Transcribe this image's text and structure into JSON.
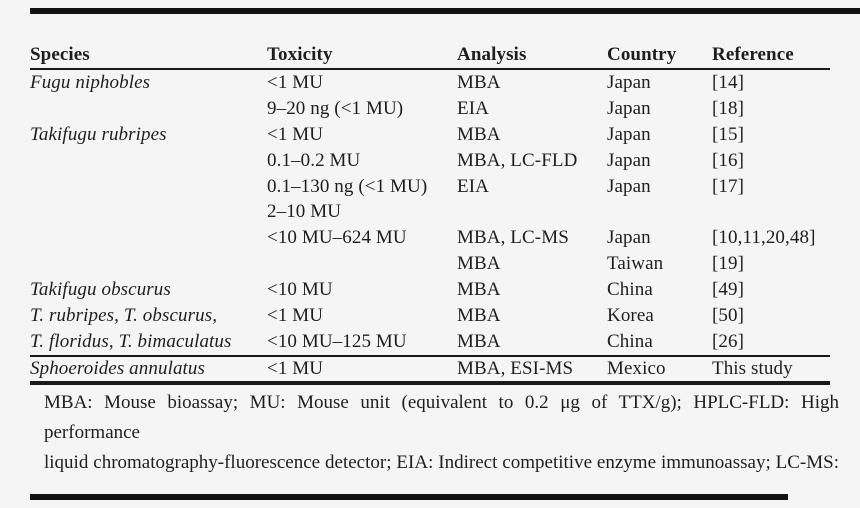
{
  "table": {
    "columns": [
      "Species",
      "Toxicity",
      "Analysis",
      "Country",
      "Reference"
    ],
    "rows": [
      [
        "Fugu niphobles",
        "<1 MU",
        "MBA",
        "Japan",
        "[14]"
      ],
      [
        "",
        "9–20 ng (<1 MU)",
        "EIA",
        "Japan",
        "[18]"
      ],
      [
        "Takifugu rubripes",
        "<1 MU",
        "MBA",
        "Japan",
        "[15]"
      ],
      [
        "",
        "0.1–0.2 MU",
        "MBA, LC-FLD",
        "Japan",
        "[16]"
      ],
      [
        "",
        "0.1–130 ng (<1 MU)",
        "EIA",
        "Japan",
        "[17]"
      ],
      [
        "",
        "2–10 MU",
        "",
        "",
        ""
      ],
      [
        "",
        "<10 MU–624 MU",
        "MBA, LC-MS",
        "Japan",
        "[10,11,20,48]"
      ],
      [
        "",
        "",
        "MBA",
        "Taiwan",
        "[19]"
      ],
      [
        "Takifugu obscurus",
        "<10 MU",
        "MBA",
        "China",
        "[49]"
      ],
      [
        "T. rubripes, T. obscurus,",
        "<1 MU",
        "MBA",
        "Korea",
        "[50]"
      ],
      [
        "T. floridus, T. bimaculatus",
        "<10 MU–125 MU",
        "MBA",
        "China",
        "[26]"
      ]
    ],
    "last_row": [
      "Sphoeroides annulatus",
      "<1 MU",
      "MBA, ESI-MS",
      "Mexico",
      "This study"
    ]
  },
  "footnote": {
    "line1": "MBA: Mouse bioassay; MU: Mouse unit (equivalent to 0.2 μg of TTX/g); HPLC-FLD: High performance",
    "line2": "liquid chromatography-fluorescence detector; EIA: Indirect competitive enzyme immunoassay; LC-MS:"
  },
  "colors": {
    "background": "#f5f5f6",
    "text": "#1e1e1e",
    "rule": "#1a1a1a"
  }
}
